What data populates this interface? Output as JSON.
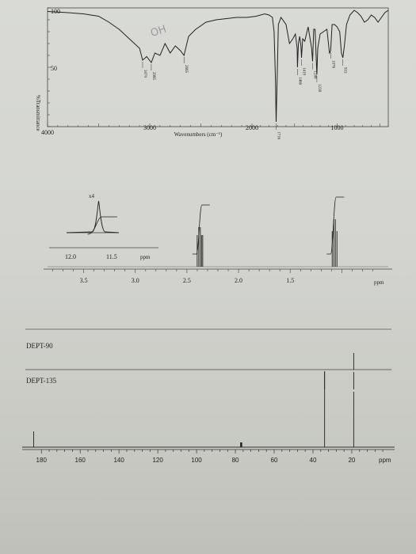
{
  "chart_data": [
    {
      "type": "line",
      "ylabel": "%Transmittance",
      "xlabel": "Wavenumbers (cm⁻¹)",
      "x_ticks": [
        "4000",
        "3000",
        "2000",
        "1000"
      ],
      "y_ticks": [
        "100",
        "50"
      ],
      "xlim": [
        4000,
        400
      ],
      "ylim": [
        0,
        100
      ],
      "handwriting": "OH",
      "peak_labels": [
        {
          "x": 3070,
          "label": "3070"
        },
        {
          "x": 2985,
          "label": "2985"
        },
        {
          "x": 2665,
          "label": "2665"
        },
        {
          "x": 1716,
          "label": "1716"
        },
        {
          "x": 1466,
          "label": "1466"
        },
        {
          "x": 1419,
          "label": "1419"
        },
        {
          "x": 1288,
          "label": "1288"
        },
        {
          "x": 1238,
          "label": "1238"
        },
        {
          "x": 1076,
          "label": "1076"
        },
        {
          "x": 933,
          "label": "933"
        }
      ],
      "x": [
        4000,
        3800,
        3650,
        3500,
        3400,
        3300,
        3200,
        3100,
        3070,
        3030,
        2985,
        2950,
        2900,
        2850,
        2800,
        2750,
        2700,
        2665,
        2620,
        2550,
        2450,
        2350,
        2250,
        2150,
        2050,
        1950,
        1850,
        1800,
        1760,
        1740,
        1725,
        1716,
        1705,
        1690,
        1660,
        1600,
        1560,
        1520,
        1490,
        1470,
        1466,
        1455,
        1440,
        1425,
        1419,
        1405,
        1380,
        1340,
        1300,
        1288,
        1275,
        1260,
        1245,
        1238,
        1228,
        1200,
        1160,
        1120,
        1090,
        1076,
        1060,
        1030,
        1000,
        970,
        950,
        933,
        915,
        890,
        850,
        800,
        760,
        720,
        680,
        640,
        600,
        560,
        520,
        480,
        440,
        400
      ],
      "y": [
        97,
        96,
        95,
        93,
        88,
        82,
        74,
        66,
        56,
        59,
        54,
        62,
        60,
        70,
        62,
        68,
        64,
        60,
        76,
        82,
        88,
        90,
        91,
        92,
        92,
        93,
        95,
        94,
        92,
        80,
        40,
        4,
        38,
        86,
        92,
        86,
        70,
        74,
        78,
        66,
        50,
        70,
        76,
        68,
        58,
        74,
        72,
        84,
        66,
        55,
        82,
        82,
        55,
        44,
        66,
        78,
        80,
        82,
        62,
        64,
        86,
        86,
        84,
        80,
        62,
        58,
        68,
        86,
        94,
        98,
        96,
        93,
        88,
        90,
        94,
        92,
        88,
        92,
        96,
        98
      ]
    },
    {
      "type": "line",
      "xlabel": "ppm",
      "x_ticks": [
        "3.5",
        "3.0",
        "2.5",
        "2.0",
        "1.5"
      ],
      "inset_label": "x4",
      "inset_x_ticks": [
        "12.0",
        "11.5"
      ],
      "inset_xlabel": "ppm",
      "xlim": [
        3.85,
        0.55
      ],
      "peaks": [
        {
          "x": 11.87,
          "height": 72,
          "multiplicity": "singlet"
        },
        {
          "x": 2.37,
          "height": 78,
          "multiplicity": "multiplet"
        },
        {
          "x": 1.07,
          "height": 88,
          "multiplicity": "doublet"
        }
      ]
    },
    {
      "type": "line",
      "name": "DEPT-90",
      "peaks_ppm": [
        19
      ]
    },
    {
      "type": "line",
      "name": "DEPT-135",
      "peaks_ppm": [
        34,
        19
      ]
    },
    {
      "type": "line",
      "xlabel": "ppm",
      "x_ticks": [
        "180",
        "160",
        "140",
        "120",
        "100",
        "80",
        "60",
        "40",
        "20"
      ],
      "xlim": [
        185,
        2
      ],
      "peaks_ppm": [
        184,
        77,
        34,
        19
      ],
      "peak_heights": [
        20,
        6,
        96,
        70
      ]
    }
  ]
}
